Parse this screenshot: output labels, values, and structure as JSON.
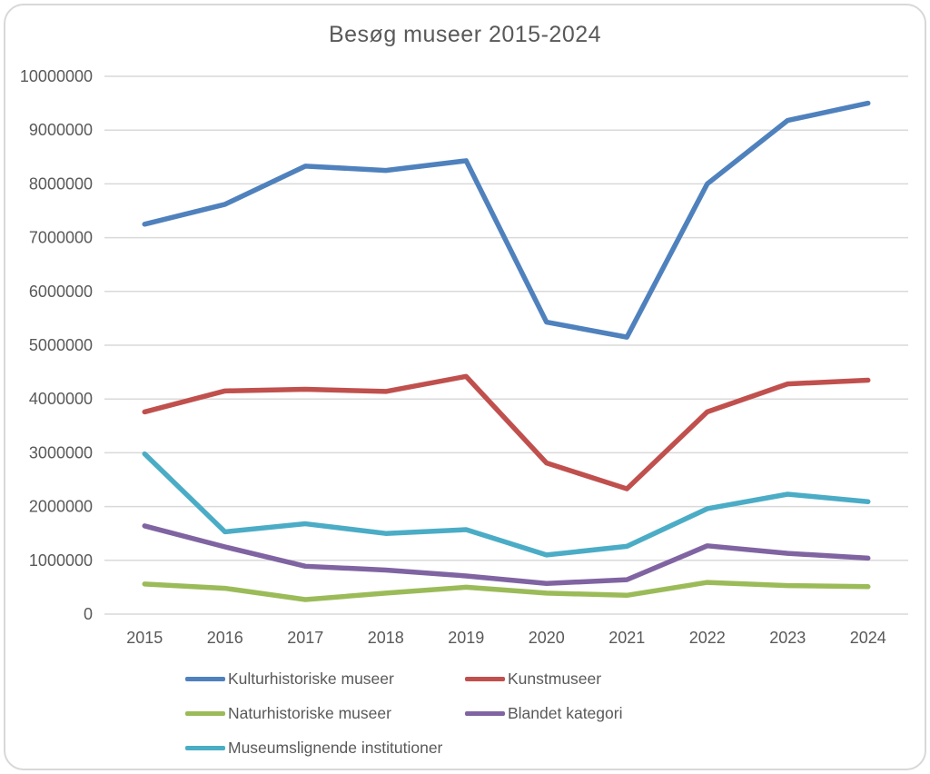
{
  "chart_data": {
    "type": "line",
    "title": "Besøg museer 2015-2024",
    "categories": [
      "2015",
      "2016",
      "2017",
      "2018",
      "2019",
      "2020",
      "2021",
      "2022",
      "2023",
      "2024"
    ],
    "series": [
      {
        "name": "Kulturhistoriske museer",
        "color": "#4F81BD",
        "values": [
          7250000,
          7620000,
          8330000,
          8250000,
          8430000,
          5430000,
          5150000,
          8000000,
          9180000,
          9500000
        ]
      },
      {
        "name": "Kunstmuseer",
        "color": "#C0504D",
        "values": [
          3760000,
          4150000,
          4180000,
          4140000,
          4420000,
          2810000,
          2330000,
          3760000,
          4280000,
          4350000
        ]
      },
      {
        "name": "Naturhistoriske museer",
        "color": "#9BBB59",
        "values": [
          560000,
          480000,
          270000,
          390000,
          500000,
          390000,
          350000,
          590000,
          530000,
          510000
        ]
      },
      {
        "name": "Blandet kategori",
        "color": "#8064A2",
        "values": [
          1640000,
          1250000,
          890000,
          820000,
          710000,
          570000,
          640000,
          1270000,
          1130000,
          1040000
        ]
      },
      {
        "name": "Museumslignende institutioner",
        "color": "#4BACC6",
        "values": [
          2980000,
          1530000,
          1680000,
          1500000,
          1570000,
          1100000,
          1260000,
          1960000,
          2230000,
          2090000
        ]
      }
    ],
    "ylim": [
      0,
      10000000
    ],
    "ytick_step": 1000000,
    "ytick_labels": [
      "0",
      "1000000",
      "2000000",
      "3000000",
      "4000000",
      "5000000",
      "6000000",
      "7000000",
      "8000000",
      "9000000",
      "10000000"
    ],
    "grid": true,
    "legend_position": "bottom",
    "legend_columns": 2
  },
  "colors": {
    "text": "#595959",
    "gridline": "#D9D9D9",
    "frame_border": "#D8D8D8",
    "background": "#FFFFFF"
  }
}
